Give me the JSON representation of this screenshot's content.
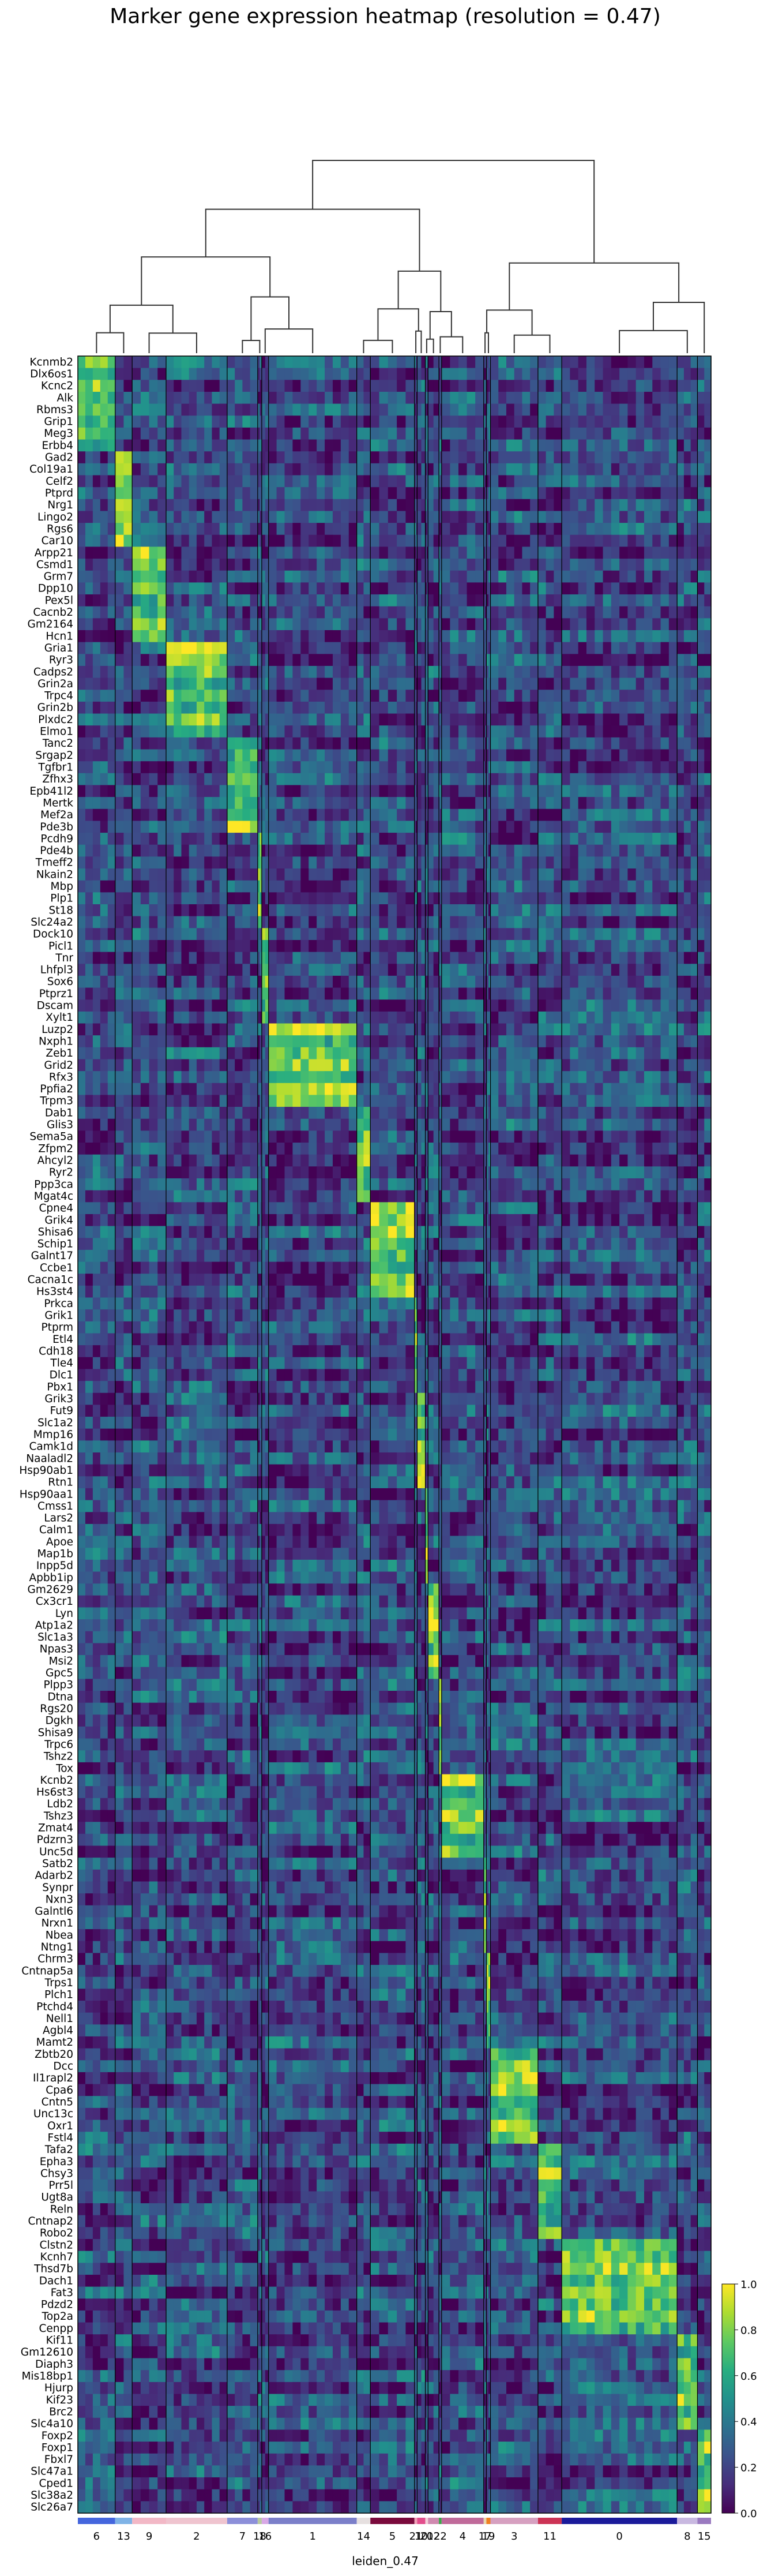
{
  "chart_data": {
    "type": "heatmap",
    "title": "Marker gene expression heatmap (resolution = 0.47)",
    "xlabel": "leiden_0.47",
    "colormap": "viridis",
    "colorbar_ticks": [
      "0.0",
      "0.2",
      "0.4",
      "0.6",
      "0.8",
      "1.0"
    ],
    "value_range": [
      0,
      1
    ],
    "dendrogram": "top",
    "groups": [
      {
        "label": "6",
        "color": "#4466dd",
        "frac": 0.055
      },
      {
        "label": "13",
        "color": "#7fb3e6",
        "frac": 0.025
      },
      {
        "label": "9",
        "color": "#f2b8c6",
        "frac": 0.05
      },
      {
        "label": "2",
        "color": "#efc4cf",
        "frac": 0.09
      },
      {
        "label": "7",
        "color": "#8c8fd9",
        "frac": 0.045
      },
      {
        "label": "18",
        "color": "#b8c8a0",
        "frac": 0.006
      },
      {
        "label": "16",
        "color": "#d8a8e6",
        "frac": 0.01
      },
      {
        "label": "1",
        "color": "#7b7fc9",
        "frac": 0.13
      },
      {
        "label": "14",
        "color": "#e6e0e0",
        "frac": 0.02
      },
      {
        "label": "5",
        "color": "#7a0a3c",
        "frac": 0.065
      },
      {
        "label": "21",
        "color": "#f0a0b8",
        "frac": 0.004
      },
      {
        "label": "10",
        "color": "#e34d8c",
        "frac": 0.012
      },
      {
        "label": "20",
        "color": "#f5d0da",
        "frac": 0.004
      },
      {
        "label": "12",
        "color": "#d08ab0",
        "frac": 0.016
      },
      {
        "label": "22",
        "color": "#3aa84a",
        "frac": 0.004
      },
      {
        "label": "4",
        "color": "#c06a9a",
        "frac": 0.062
      },
      {
        "label": "17",
        "color": "#e8d8b0",
        "frac": 0.004
      },
      {
        "label": "19",
        "color": "#f08020",
        "frac": 0.006
      },
      {
        "label": "3",
        "color": "#d6a0c0",
        "frac": 0.07
      },
      {
        "label": "11",
        "color": "#cc3355",
        "frac": 0.035
      },
      {
        "label": "0",
        "color": "#1a1a9a",
        "frac": 0.17
      },
      {
        "label": "8",
        "color": "#c8b8e0",
        "frac": 0.03
      },
      {
        "label": "15",
        "color": "#9a7ac0",
        "frac": 0.02
      }
    ],
    "genes": [
      "Kcnmb2",
      "Dlx6os1",
      "Kcnc2",
      "Alk",
      "Rbms3",
      "Grip1",
      "Meg3",
      "Erbb4",
      "Gad2",
      "Col19a1",
      "Celf2",
      "Ptprd",
      "Nrg1",
      "Lingo2",
      "Rgs6",
      "Car10",
      "Arpp21",
      "Csmd1",
      "Grm7",
      "Dpp10",
      "Pex5l",
      "Cacnb2",
      "Gm2164",
      "Hcn1",
      "Gria1",
      "Ryr3",
      "Cadps2",
      "Grin2a",
      "Trpc4",
      "Grin2b",
      "Plxdc2",
      "Elmo1",
      "Tanc2",
      "Srgap2",
      "Tgfbr1",
      "Zfhx3",
      "Epb41l2",
      "Mertk",
      "Mef2a",
      "Pde3b",
      "Pcdh9",
      "Pde4b",
      "Tmeff2",
      "Nkain2",
      "Mbp",
      "Plp1",
      "St18",
      "Slc24a2",
      "Dock10",
      "Picl1",
      "Tnr",
      "Lhfpl3",
      "Sox6",
      "Ptprz1",
      "Dscam",
      "Xylt1",
      "Luzp2",
      "Nxph1",
      "Zeb1",
      "Grid2",
      "Rfx3",
      "Ppfia2",
      "Trpm3",
      "Dab1",
      "Glis3",
      "Sema5a",
      "Zfpm2",
      "Ahcyl2",
      "Ryr2",
      "Ppp3ca",
      "Mgat4c",
      "Cpne4",
      "Grik4",
      "Shisa6",
      "Schip1",
      "Galnt17",
      "Ccbe1",
      "Cacna1c",
      "Hs3st4",
      "Prkca",
      "Grik1",
      "Ptprm",
      "Etl4",
      "Cdh18",
      "Tle4",
      "Dlc1",
      "Pbx1",
      "Grik3",
      "Fut9",
      "Slc1a2",
      "Mmp16",
      "Camk1d",
      "Naaladl2",
      "Hsp90ab1",
      "Rtn1",
      "Hsp90aa1",
      "Cmss1",
      "Lars2",
      "Calm1",
      "Apoe",
      "Map1b",
      "Inpp5d",
      "Apbb1ip",
      "Gm2629",
      "Cx3cr1",
      "Lyn",
      "Atp1a2",
      "Slc1a3",
      "Npas3",
      "Msi2",
      "Gpc5",
      "Plpp3",
      "Dtna",
      "Rgs20",
      "Dgkh",
      "Shisa9",
      "Trpc6",
      "Tshz2",
      "Tox",
      "Kcnb2",
      "Hs6st3",
      "Ldb2",
      "Tshz3",
      "Zmat4",
      "Pdzrn3",
      "Unc5d",
      "Satb2",
      "Adarb2",
      "Synpr",
      "Nxn3",
      "Galntl6",
      "Nrxn1",
      "Nbea",
      "Ntng1",
      "Chrm3",
      "Cntnap5a",
      "Trps1",
      "Plch1",
      "Ptchd4",
      "Nell1",
      "Agbl4",
      "Mamt2",
      "Zbtb20",
      "Dcc",
      "Il1rapl2",
      "Cpa6",
      "Cntn5",
      "Unc13c",
      "Oxr1",
      "Fstl4",
      "Tafa2",
      "Epha3",
      "Chsy3",
      "Prr5l",
      "Ugt8a",
      "Reln",
      "Cntnap2",
      "Robo2",
      "Clstn2",
      "Kcnh7",
      "Thsd7b",
      "Dach1",
      "Fat3",
      "Pdzd2",
      "Top2a",
      "Cenpp",
      "Kif11",
      "Gm12610",
      "Diaph3",
      "Mis18bp1",
      "Hjurp",
      "Kif23",
      "Brc2",
      "Slc4a10",
      "Foxp2",
      "Foxp1",
      "Fbxl7",
      "Slc47a1",
      "Cped1",
      "Slc38a2",
      "Slc26a7"
    ]
  }
}
